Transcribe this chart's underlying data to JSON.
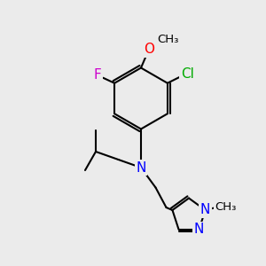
{
  "background_color": "#ebebeb",
  "bond_color": "#000000",
  "bond_width": 1.5,
  "atom_labels": {
    "F": {
      "color": "#cc00cc",
      "fontsize": 11
    },
    "O": {
      "color": "#ff0000",
      "fontsize": 11
    },
    "Cl": {
      "color": "#00aa00",
      "fontsize": 11
    },
    "N": {
      "color": "#0000ff",
      "fontsize": 11
    },
    "C": {
      "color": "#000000",
      "fontsize": 11
    }
  }
}
